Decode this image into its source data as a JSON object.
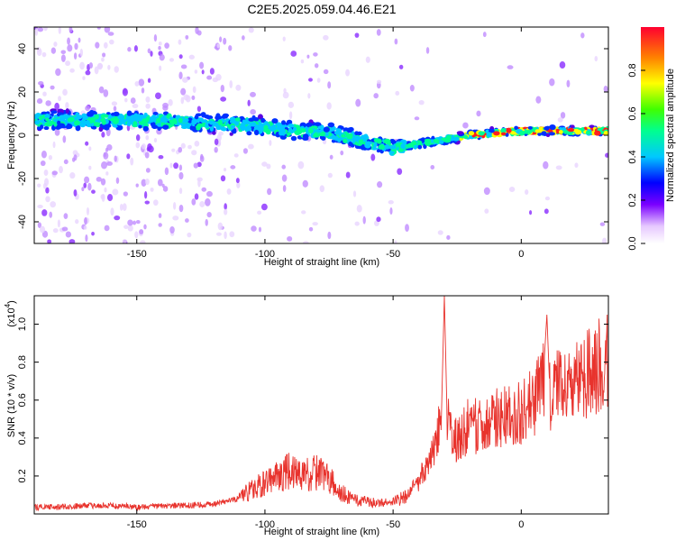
{
  "page_title": "C2E5.2025.059.04.46.E21",
  "chart_data": [
    {
      "type": "heatmap",
      "panel": "spectrogram",
      "xlabel": "Height of straight line (km)",
      "ylabel": "Frequency (Hz)",
      "xlim": [
        -190,
        34
      ],
      "ylim": [
        -50,
        50
      ],
      "xticks": [
        -150,
        -100,
        -50,
        0
      ],
      "yticks": [
        -40,
        -20,
        0,
        20,
        40
      ],
      "ridge": {
        "x": [
          -190,
          -170,
          -150,
          -130,
          -110,
          -100,
          -90,
          -80,
          -70,
          -60,
          -50,
          -45,
          -40,
          -30,
          -20,
          -10,
          0,
          10,
          20,
          34
        ],
        "y": [
          7,
          7,
          7,
          6,
          5,
          4,
          2,
          2,
          0,
          -3,
          -6,
          -5,
          -4,
          -2,
          0,
          1,
          2,
          2,
          2,
          2
        ]
      },
      "colorbar": {
        "label": "Normalized spectral amplitude",
        "range": [
          0,
          1
        ],
        "ticks": [
          0.0,
          0.2,
          0.4,
          0.6,
          0.8
        ],
        "tick_labels": [
          "0.0",
          "0.2",
          "0.4",
          "0.6",
          "0.8"
        ]
      }
    },
    {
      "type": "line",
      "panel": "snr",
      "xlabel": "Height of straight line (km)",
      "ylabel": "SNR (10 * v/v)",
      "y_multiplier_label": "(x10",
      "y_multiplier_exp": "4",
      "xlim": [
        -190,
        34
      ],
      "ylim": [
        0,
        1.15
      ],
      "xticks": [
        -150,
        -100,
        -50,
        0
      ],
      "yticks": [
        0.2,
        0.4,
        0.6,
        0.8,
        1.0
      ],
      "line_color": "#e8332d",
      "series": [
        {
          "x": [
            -190,
            -180,
            -170,
            -160,
            -150,
            -140,
            -130,
            -120,
            -110,
            -100,
            -95,
            -90,
            -85,
            -80,
            -75,
            -70,
            -65,
            -60,
            -55,
            -50,
            -45,
            -40,
            -35,
            -31,
            -30,
            -29,
            -25,
            -20,
            -15,
            -10,
            -5,
            0,
            5,
            9,
            10,
            11,
            15,
            20,
            25,
            30,
            34
          ],
          "values": [
            0.04,
            0.04,
            0.05,
            0.05,
            0.04,
            0.05,
            0.05,
            0.06,
            0.1,
            0.18,
            0.22,
            0.25,
            0.22,
            0.24,
            0.2,
            0.12,
            0.08,
            0.07,
            0.06,
            0.07,
            0.1,
            0.2,
            0.35,
            0.6,
            1.15,
            0.55,
            0.45,
            0.55,
            0.52,
            0.58,
            0.6,
            0.62,
            0.68,
            0.82,
            1.05,
            0.7,
            0.78,
            0.82,
            0.86,
            0.9,
            0.95
          ]
        }
      ]
    }
  ]
}
